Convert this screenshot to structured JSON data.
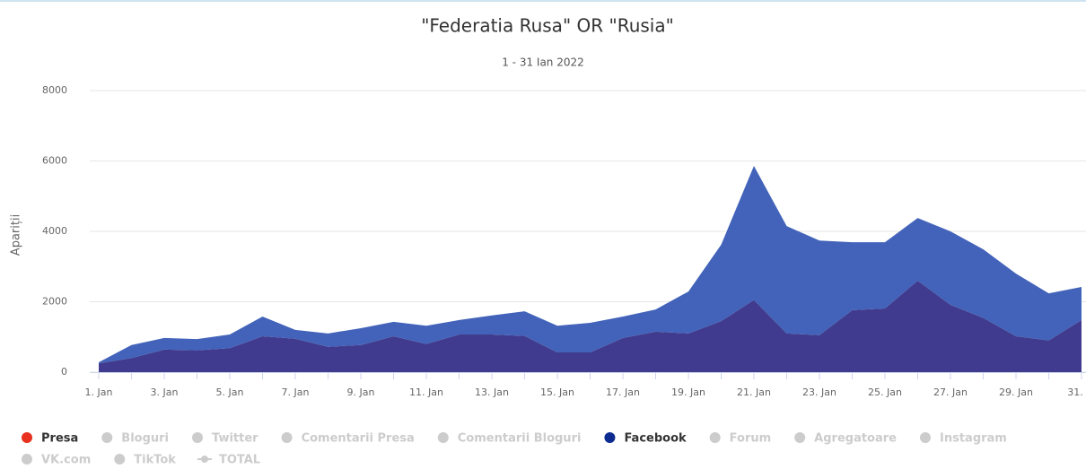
{
  "chart_data": {
    "type": "stacked_area",
    "title": "\"Federatia Rusa\" OR \"Rusia\"",
    "subtitle": "1 - 31 Ian 2022",
    "y_label": "Apariții",
    "categories": [
      "1. Jan",
      null,
      "3. Jan",
      null,
      "5. Jan",
      null,
      "7. Jan",
      null,
      "9. Jan",
      null,
      "11. Jan",
      null,
      "13. Jan",
      null,
      "15. Jan",
      null,
      "17. Jan",
      null,
      "19. Jan",
      null,
      "21. Jan",
      null,
      "23. Jan",
      null,
      "25. Jan",
      null,
      "27. Jan",
      null,
      "29. Jan",
      null,
      "31. ..."
    ],
    "ylim": [
      0,
      8000
    ],
    "yticks": [
      0,
      2000,
      4000,
      6000,
      8000
    ],
    "grid": true,
    "series": [
      {
        "name": "Presa",
        "color": "#e8311f",
        "fill": "#403b8e",
        "values": [
          250,
          400,
          640,
          620,
          680,
          1020,
          950,
          720,
          770,
          1020,
          800,
          1070,
          1070,
          1030,
          560,
          560,
          970,
          1150,
          1100,
          1450,
          2050,
          1100,
          1050,
          1760,
          1810,
          2600,
          1910,
          1540,
          1020,
          900,
          1480
        ]
      },
      {
        "name": "Bloguri",
        "color": "#cccccc",
        "visible": false
      },
      {
        "name": "Twitter",
        "color": "#cccccc",
        "visible": false
      },
      {
        "name": "Comentarii Presa",
        "color": "#cccccc",
        "visible": false
      },
      {
        "name": "Comentarii Bloguri",
        "color": "#cccccc",
        "visible": false
      },
      {
        "name": "Facebook",
        "color": "#0d2c91",
        "fill": "#4263b9",
        "values": [
          30,
          370,
          330,
          320,
          390,
          560,
          250,
          380,
          480,
          410,
          520,
          410,
          540,
          700,
          760,
          840,
          610,
          630,
          1190,
          2170,
          3810,
          3050,
          2690,
          1930,
          1880,
          1780,
          2090,
          1950,
          1780,
          1340,
          940
        ]
      },
      {
        "name": "Forum",
        "color": "#cccccc",
        "visible": false
      },
      {
        "name": "Agregatoare",
        "color": "#cccccc",
        "visible": false
      },
      {
        "name": "Instagram",
        "color": "#cccccc",
        "visible": false
      },
      {
        "name": "VK.com",
        "color": "#cccccc",
        "visible": false
      },
      {
        "name": "TikTok",
        "color": "#cccccc",
        "visible": false
      },
      {
        "name": "TOTAL",
        "color": "#cccccc",
        "visible": false,
        "legend_symbol": "line"
      }
    ]
  }
}
